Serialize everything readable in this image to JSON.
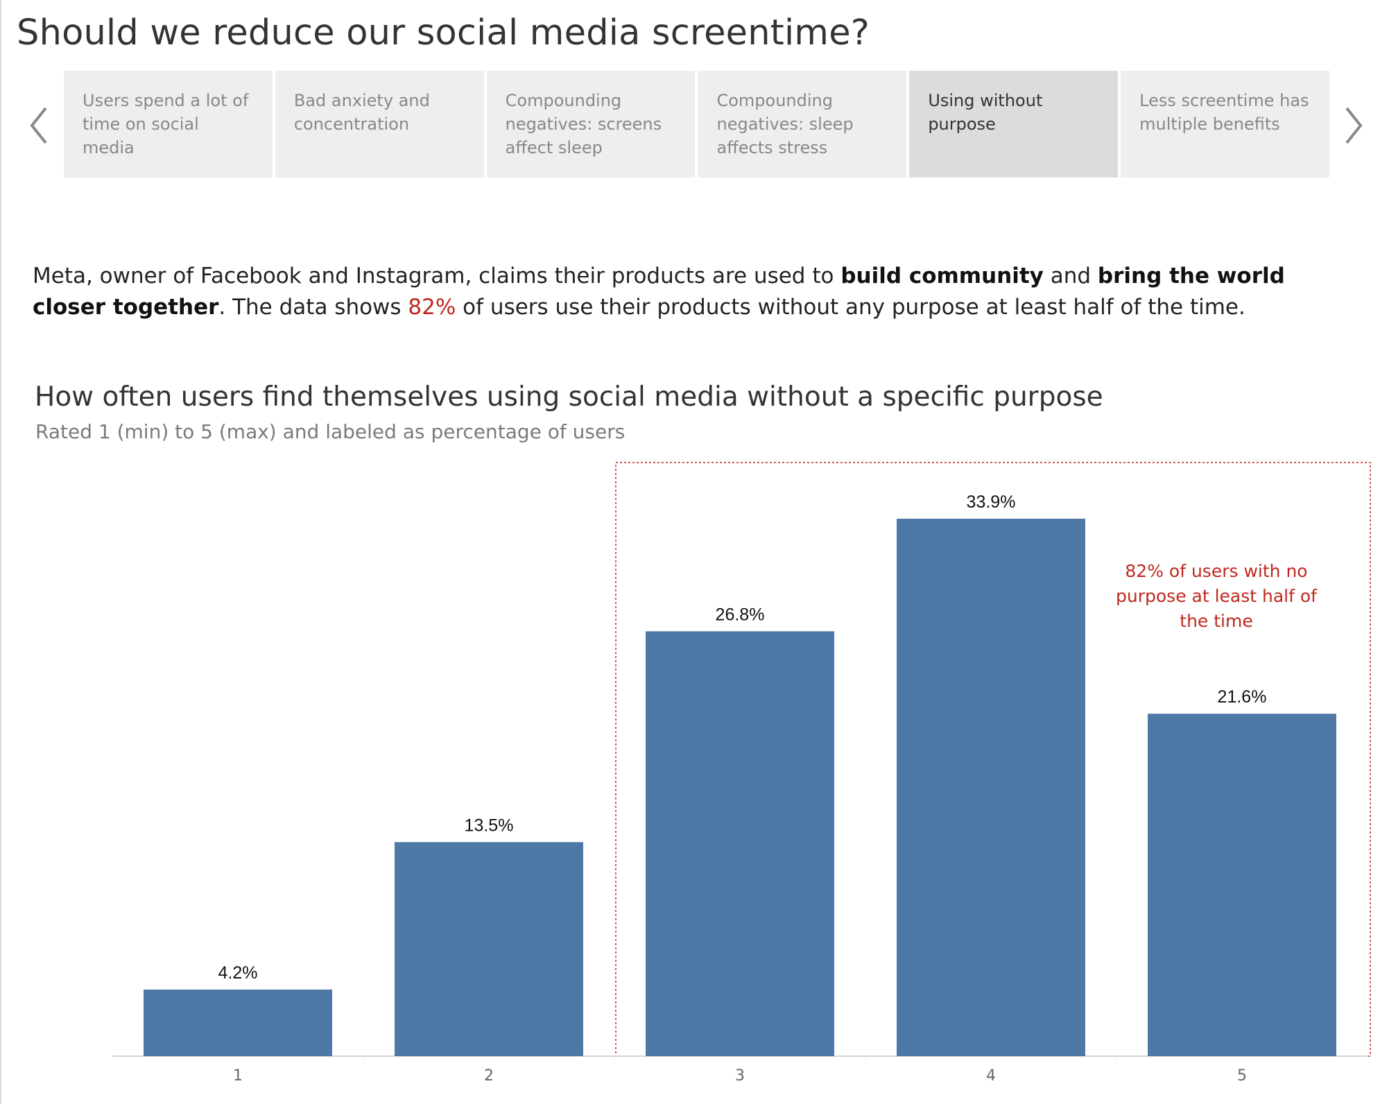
{
  "story": {
    "title": "Should we reduce our social media screentime?",
    "points": [
      {
        "label": "Users spend a lot of time on social media",
        "active": false
      },
      {
        "label": "Bad anxiety and concentration",
        "active": false
      },
      {
        "label": "Compounding negatives: screens affect sleep",
        "active": false
      },
      {
        "label": "Compounding negatives: sleep affects stress",
        "active": false
      },
      {
        "label": "Using without purpose",
        "active": true
      },
      {
        "label": "Less screentime has multiple benefits",
        "active": false
      }
    ],
    "prev_icon": "chevron-left-icon",
    "next_icon": "chevron-right-icon"
  },
  "intro": {
    "part1": "Meta, owner of Facebook and Instagram, claims their products are used to ",
    "bold1": "build community",
    "part2": " and ",
    "bold2": "bring the world closer together",
    "part3": ". The data shows ",
    "highlight": "82%",
    "part4": " of users use their products without any purpose at least half of the time."
  },
  "chart_data": {
    "type": "bar",
    "title": "How often users find themselves using social media without a specific purpose",
    "subtitle": "Rated 1 (min) to 5 (max) and labeled as percentage of users",
    "categories": [
      "1",
      "2",
      "3",
      "4",
      "5"
    ],
    "values": [
      4.2,
      13.5,
      26.8,
      33.9,
      21.6
    ],
    "value_labels": [
      "4.2%",
      "13.5%",
      "26.8%",
      "33.9%",
      "21.6%"
    ],
    "ylim": [
      0,
      36
    ],
    "grid": false,
    "highlight_categories": [
      "3",
      "4",
      "5"
    ],
    "annotation": "82% of users with no purpose at least half of the time"
  },
  "colors": {
    "bar": "#4e79a7",
    "accent": "#c0281e",
    "active_point": "#dcdcdc",
    "inactive_point": "#eeeeee"
  }
}
